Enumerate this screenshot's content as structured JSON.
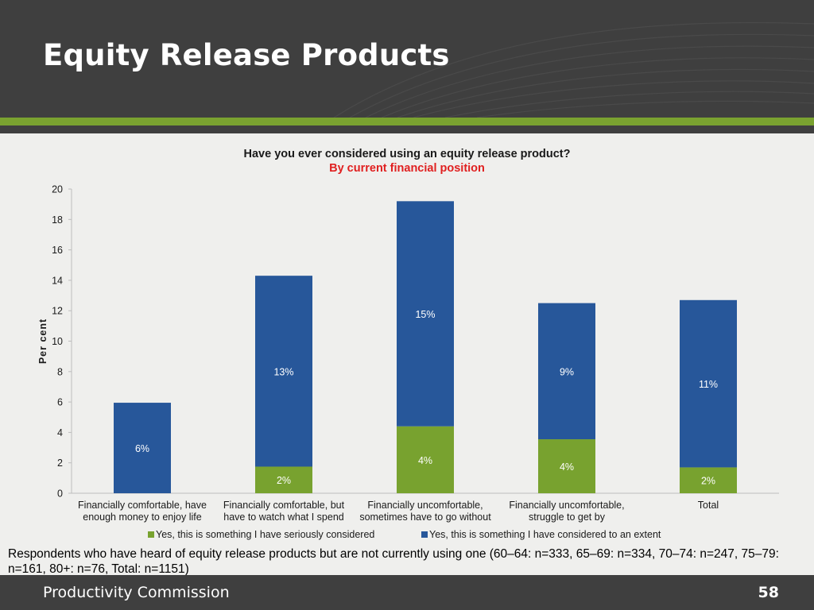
{
  "slide": {
    "title": "Equity Release Products",
    "footer_org": "Productivity Commission",
    "page_number": "58",
    "note": "Respondents who have heard of equity release products but are not currently using one (60–64: n=333, 65–69: n=334, 70–74: n=247, 75–79: n=161, 80+: n=76, Total: n=1151)"
  },
  "colors": {
    "header_bg": "#3f3f3f",
    "accent_green": "#7aa230",
    "series_green": "#78a22f",
    "series_blue": "#27579a",
    "subtitle_red": "#e02020"
  },
  "chart_data": {
    "type": "bar",
    "stacked": true,
    "title": "Have you ever considered using an equity release product?",
    "subtitle": "By current financial position",
    "ylabel": "Per cent",
    "xlabel": "",
    "ylim": [
      0,
      20
    ],
    "yticks": [
      0,
      2,
      4,
      6,
      8,
      10,
      12,
      14,
      16,
      18,
      20
    ],
    "categories": [
      [
        "Financially comfortable, have",
        "enough money to enjoy life"
      ],
      [
        "Financially comfortable, but",
        "have to watch what I spend"
      ],
      [
        "Financially uncomfortable,",
        "sometimes have to go without"
      ],
      [
        "Financially uncomfortable,",
        "struggle to get by"
      ],
      [
        "Total"
      ]
    ],
    "series": [
      {
        "name": "Yes, this is something I have seriously considered",
        "color": "#78a22f",
        "values": [
          0,
          1.75,
          4.4,
          3.55,
          1.7
        ],
        "labels": [
          "",
          "2%",
          "4%",
          "4%",
          "2%"
        ]
      },
      {
        "name": "Yes, this is something I have considered to an extent",
        "color": "#27579a",
        "values": [
          5.95,
          12.55,
          14.8,
          8.95,
          11.0
        ],
        "labels": [
          "6%",
          "13%",
          "15%",
          "9%",
          "11%"
        ]
      }
    ],
    "grid": false,
    "legend": "bottom"
  }
}
